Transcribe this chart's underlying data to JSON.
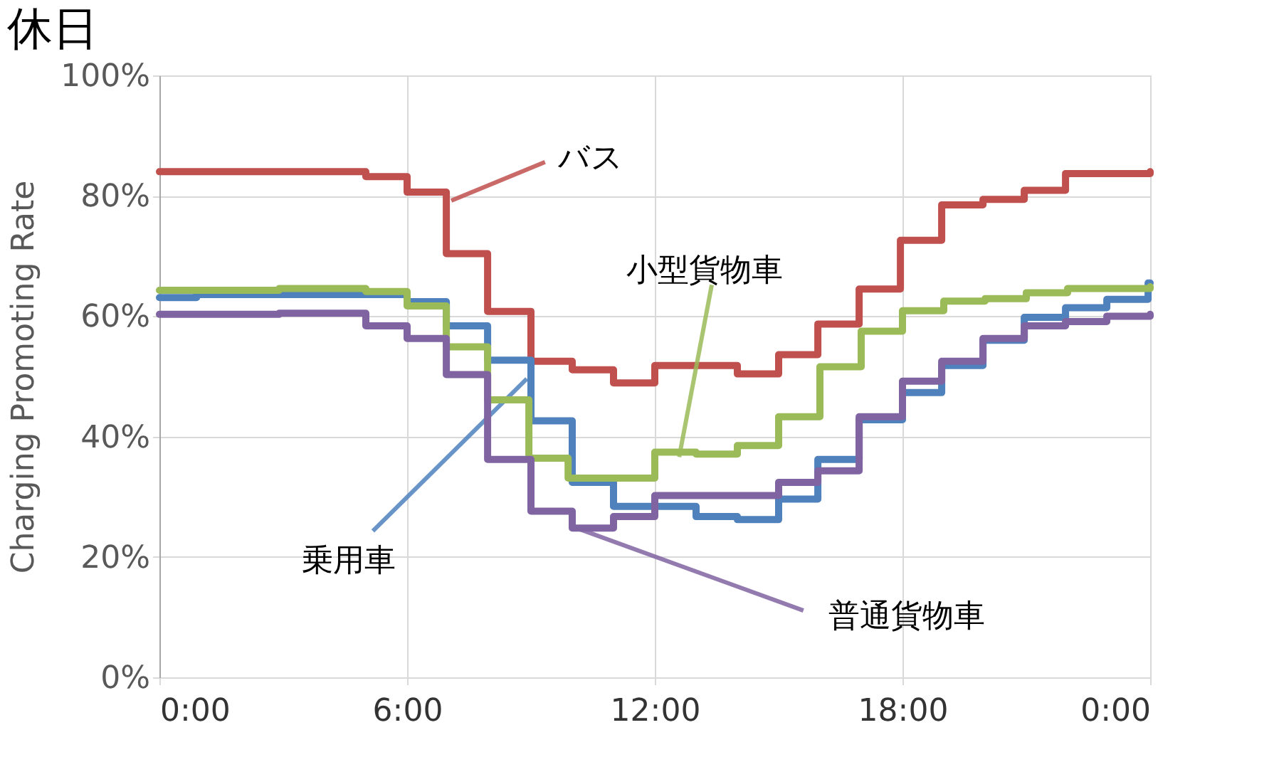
{
  "chart_data": {
    "type": "step",
    "title": "休日",
    "ylabel": "Charging Promoting Rate",
    "xlim": [
      0,
      24
    ],
    "xticks": [
      {
        "value": 0,
        "label": "0:00"
      },
      {
        "value": 6,
        "label": "6:00"
      },
      {
        "value": 12,
        "label": "12:00"
      },
      {
        "value": 18,
        "label": "18:00"
      },
      {
        "value": 24,
        "label": "0:00"
      }
    ],
    "ylim": [
      0,
      100
    ],
    "yticks": [
      {
        "value": 0,
        "label": "0%"
      },
      {
        "value": 20,
        "label": "20%"
      },
      {
        "value": 40,
        "label": "40%"
      },
      {
        "value": 60,
        "label": "60%"
      },
      {
        "value": 80,
        "label": "80%"
      },
      {
        "value": 100,
        "label": "100%"
      }
    ],
    "grid": true,
    "legend": false,
    "series": [
      {
        "name": "バス",
        "color": "#c0504d",
        "x": [
          0,
          5.0,
          6.0,
          6.95,
          7.95,
          9.0,
          10.0,
          11.0,
          12.0,
          14.0,
          15.0,
          15.95,
          16.95,
          17.95,
          18.95,
          19.95,
          20.95,
          21.95,
          24
        ],
        "values": [
          84,
          83.2,
          80.6,
          70.4,
          60.8,
          52.5,
          51.1,
          48.9,
          51.8,
          50.4,
          53.6,
          58.7,
          64.5,
          72.6,
          78.5,
          79.4,
          80.9,
          83.7,
          84
        ]
      },
      {
        "name": "乗用車",
        "color": "#4f81bd",
        "x": [
          0,
          0.9,
          6.0,
          6.95,
          7.95,
          9.0,
          10.0,
          11.0,
          13.0,
          14.0,
          15.0,
          15.95,
          16.95,
          18.0,
          18.95,
          19.95,
          20.95,
          21.95,
          22.95,
          23.95,
          24
        ],
        "values": [
          63.1,
          63.6,
          62.4,
          58.4,
          52.7,
          42.6,
          32.4,
          28.4,
          26.7,
          26.2,
          29.6,
          36.2,
          42.8,
          47.3,
          51.8,
          56.0,
          59.8,
          61.4,
          62.8,
          65.5,
          65.5
        ]
      },
      {
        "name": "小型貨物車",
        "color": "#9bbb59",
        "x": [
          0,
          2.9,
          5.0,
          6.0,
          6.95,
          7.95,
          8.95,
          9.9,
          12.0,
          13.0,
          14.0,
          15.0,
          16.0,
          17.0,
          18.0,
          19.0,
          20.0,
          21.0,
          22.0,
          24
        ],
        "values": [
          64.3,
          64.6,
          64.1,
          61.7,
          54.9,
          46.1,
          36.4,
          33.1,
          37.4,
          37.1,
          38.5,
          43.3,
          51.6,
          57.5,
          60.9,
          62.5,
          62.9,
          63.9,
          64.6,
          64.9
        ]
      },
      {
        "name": "普通貨物車",
        "color": "#8064a2",
        "x": [
          0,
          2.9,
          5.0,
          6.0,
          6.95,
          7.95,
          9.0,
          10.0,
          11.0,
          12.0,
          15.0,
          15.95,
          16.95,
          18.0,
          18.95,
          19.95,
          20.95,
          21.95,
          22.95,
          24
        ],
        "values": [
          60.3,
          60.5,
          58.4,
          56.3,
          50.3,
          36.2,
          27.6,
          24.8,
          26.7,
          30.2,
          32.4,
          34.3,
          43.3,
          49.2,
          52.5,
          56.3,
          58.4,
          59.1,
          60.0,
          60.3
        ]
      }
    ]
  }
}
